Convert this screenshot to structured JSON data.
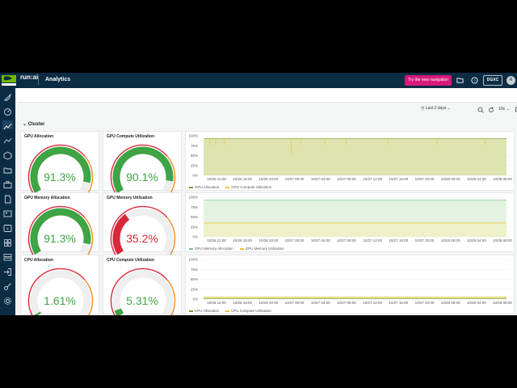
{
  "header": {
    "brand": "run:ai",
    "title": "Analytics",
    "new_nav_label": "Try the new navigation",
    "org_label": "DGXC",
    "avatar_initial": "R"
  },
  "toolbar": {
    "time_range": "Last 2 days",
    "refresh_rate": "10s"
  },
  "section": {
    "title": "Cluster"
  },
  "gauges": [
    {
      "title": "GPU Allocation",
      "value": "91.3%",
      "fraction": 0.913,
      "color": "#3ea444"
    },
    {
      "title": "GPU Compute Utilization",
      "value": "90.1%",
      "fraction": 0.901,
      "color": "#3ea444"
    },
    {
      "title": "GPU Memory Allocation",
      "value": "91.3%",
      "fraction": 0.913,
      "color": "#3ea444"
    },
    {
      "title": "GPU Memory Utilization",
      "value": "35.2%",
      "fraction": 0.352,
      "color": "#d8283a"
    },
    {
      "title": "CPU Allocation",
      "value": "1.61%",
      "fraction": 0.0161,
      "color": "#3ea444"
    },
    {
      "title": "CPU Compute Utilization",
      "value": "5.31%",
      "fraction": 0.0531,
      "color": "#3ea444"
    }
  ],
  "timeseries": {
    "y_ticks": [
      "100%",
      "75%",
      "50%",
      "25%",
      "0%"
    ],
    "x_ticks": [
      "10/26 12:00",
      "10/26 16:00",
      "10/26 20:00",
      "10/27 00:00",
      "10/27 04:00",
      "10/27 08:00",
      "10/27 12:00",
      "10/27 16:00",
      "10/27 20:00",
      "10/28 00:00",
      "10/28 04:00",
      "10/28 08:00"
    ],
    "panels": [
      {
        "legend": [
          "GPU Allocation",
          "GPU Compute Utilization"
        ],
        "colors": [
          "#7f9a2e",
          "#e8c92f"
        ]
      },
      {
        "legend": [
          "GPU Memory Allocation",
          "GPU Memory Utilization"
        ],
        "colors": [
          "#7fbf7f",
          "#e8c92f"
        ]
      },
      {
        "legend": [
          "CPU Allocation",
          "CPU Compute Utilization"
        ],
        "colors": [
          "#7f9a2e",
          "#e8c92f"
        ]
      }
    ]
  },
  "colors": {
    "topbar": "#0c2c44",
    "accent_pink": "#d6197a",
    "gauge_green": "#3ea444",
    "gauge_red": "#d8283a"
  },
  "sidebar": {
    "items": [
      "rocket-icon",
      "dashboard-icon",
      "analytics-icon",
      "chart-icon",
      "cube-icon",
      "folder-icon",
      "briefcase-icon",
      "document-icon",
      "image-icon",
      "terminal-icon",
      "grid-icon",
      "server-icon",
      "login-icon",
      "key-icon",
      "settings-icon"
    ]
  }
}
